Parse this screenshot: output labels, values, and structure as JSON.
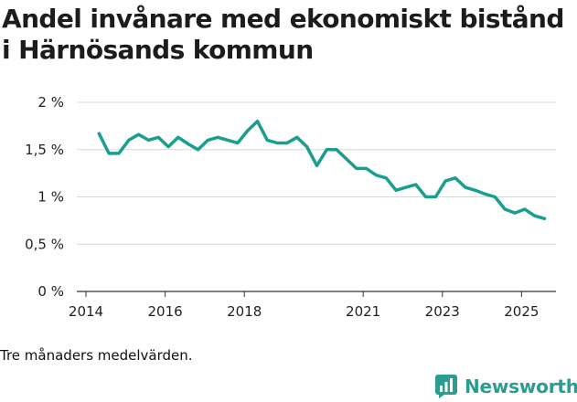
{
  "chart_data": {
    "type": "line",
    "title": "Andel invånare med ekonomiskt bistånd i Härnösands kommun",
    "xlabel": "",
    "ylabel": "",
    "ylim": [
      0,
      2
    ],
    "xlim": [
      2014,
      2026.1
    ],
    "y_ticks": [
      {
        "value": 0,
        "label": "0 %"
      },
      {
        "value": 0.5,
        "label": "0,5 %"
      },
      {
        "value": 1,
        "label": "1 %"
      },
      {
        "value": 1.5,
        "label": "1,5 %"
      },
      {
        "value": 2,
        "label": "2 %"
      }
    ],
    "x_ticks": [
      {
        "value": 2014,
        "label": "2014"
      },
      {
        "value": 2016,
        "label": "2016"
      },
      {
        "value": 2018,
        "label": "2018"
      },
      {
        "value": 2021,
        "label": "2021"
      },
      {
        "value": 2023,
        "label": "2023"
      },
      {
        "value": 2025,
        "label": "2025"
      }
    ],
    "grid": true,
    "series": [
      {
        "name": "Andel invånare med ekonomiskt bistånd",
        "color": "#1a9e8f",
        "x": [
          2014.33,
          2014.58,
          2014.83,
          2015.08,
          2015.33,
          2015.58,
          2015.83,
          2016.08,
          2016.33,
          2016.58,
          2016.83,
          2017.08,
          2017.33,
          2017.58,
          2017.83,
          2018.08,
          2018.33,
          2018.58,
          2018.83,
          2019.08,
          2019.33,
          2019.58,
          2019.83,
          2020.08,
          2020.33,
          2020.58,
          2020.83,
          2021.08,
          2021.33,
          2021.58,
          2021.83,
          2022.08,
          2022.33,
          2022.58,
          2022.83,
          2023.08,
          2023.33,
          2023.58,
          2023.83,
          2024.08,
          2024.33,
          2024.58,
          2024.83,
          2025.08,
          2025.33,
          2025.58
        ],
        "values": [
          1.67,
          1.46,
          1.46,
          1.6,
          1.66,
          1.6,
          1.63,
          1.53,
          1.63,
          1.56,
          1.5,
          1.6,
          1.63,
          1.6,
          1.57,
          1.7,
          1.8,
          1.6,
          1.57,
          1.57,
          1.63,
          1.53,
          1.33,
          1.5,
          1.5,
          1.4,
          1.3,
          1.3,
          1.23,
          1.2,
          1.07,
          1.1,
          1.13,
          1.0,
          1.0,
          1.17,
          1.2,
          1.1,
          1.07,
          1.03,
          1.0,
          0.87,
          0.83,
          0.87,
          0.8,
          0.77
        ]
      }
    ]
  },
  "caption": "Tre månaders medelvärden.",
  "brand": {
    "name": "Newsworthy",
    "icon": "newsworthy-logo-icon",
    "color": "#2a9d8f"
  }
}
